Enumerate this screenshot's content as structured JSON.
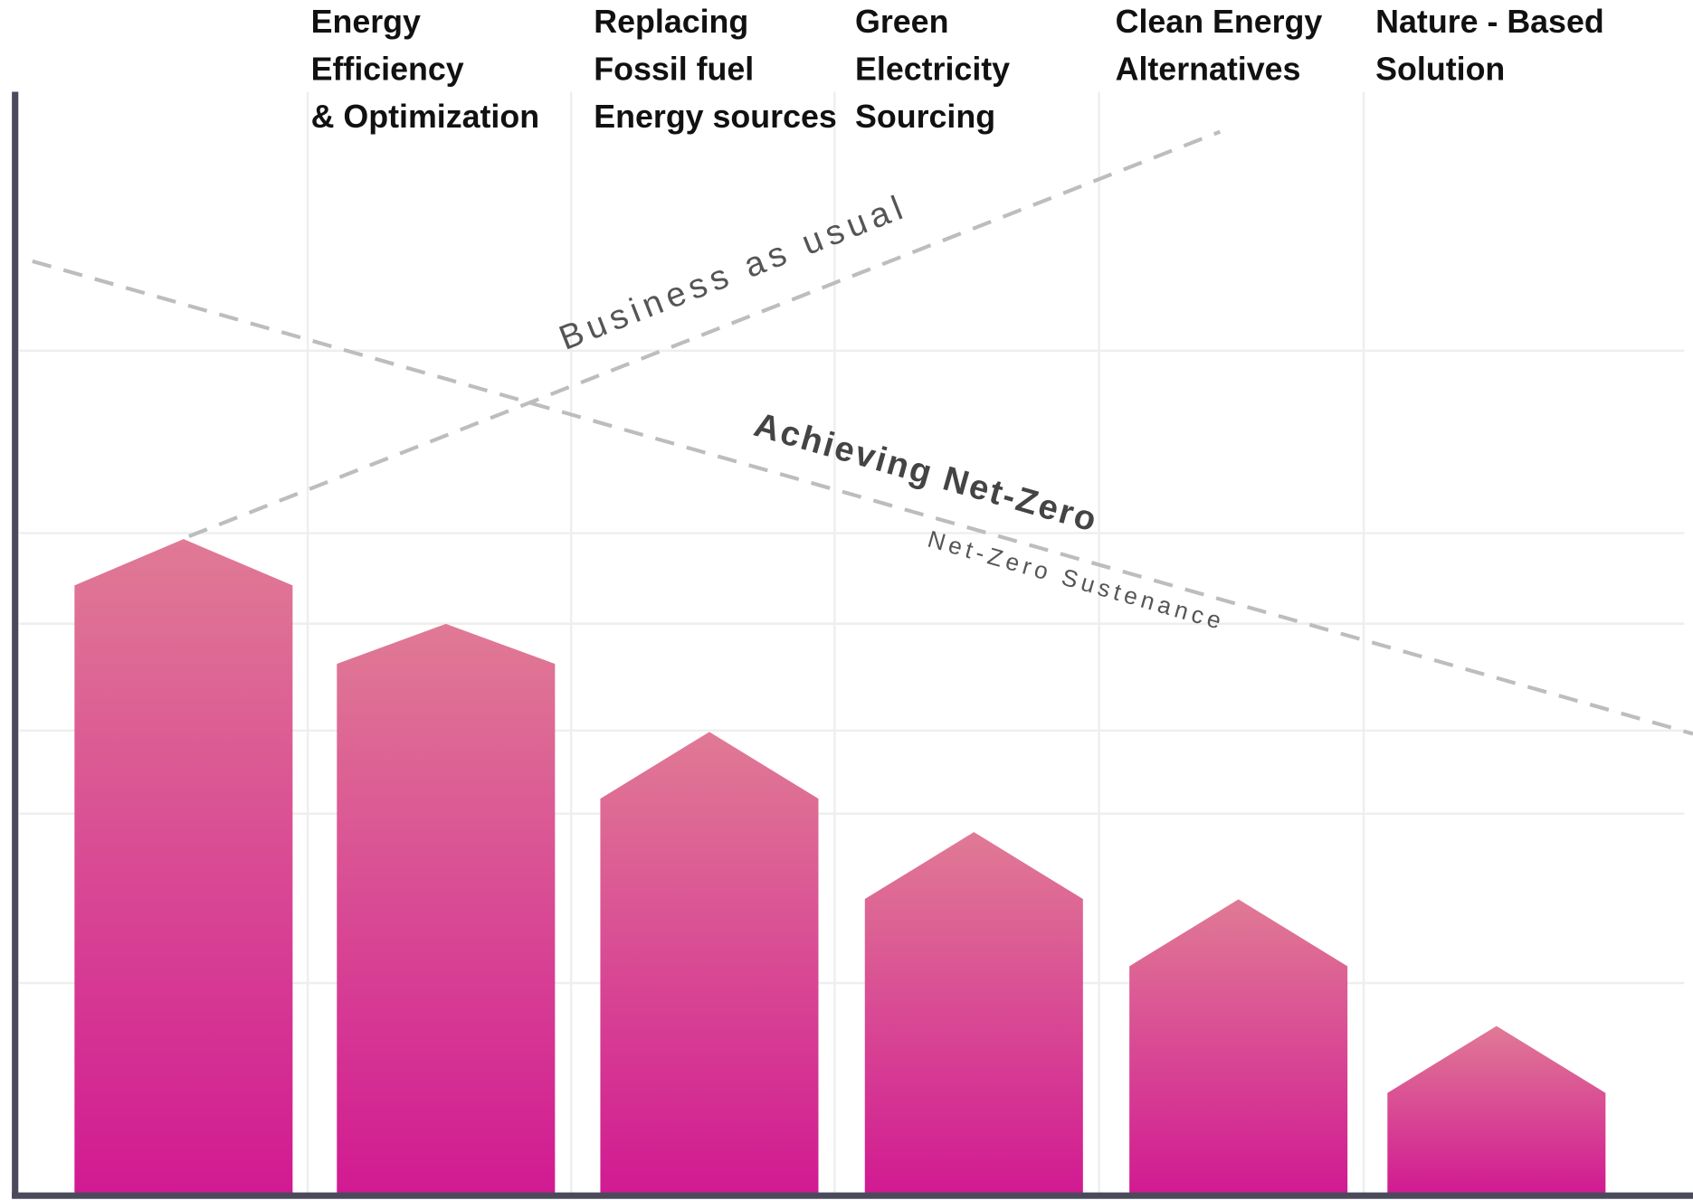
{
  "chart_data": {
    "type": "bar",
    "categories": [
      null,
      "Energy\nEfficiency\n& Optimization",
      "Replacing\nFossil fuel\nEnergy sources",
      "Green\nElectricity\nSourcing",
      "Clean Energy\nAlternatives",
      "Nature - Based\nSolution"
    ],
    "values": [
      59.4,
      51.7,
      41.9,
      32.8,
      26.7,
      15.2
    ],
    "ylim": [
      0,
      100
    ],
    "color": [
      "#e07a95",
      "#d11a92"
    ],
    "annotations": [
      "Business as usual",
      "Achieving Net-Zero",
      "Net-Zero Sustenance"
    ]
  }
}
